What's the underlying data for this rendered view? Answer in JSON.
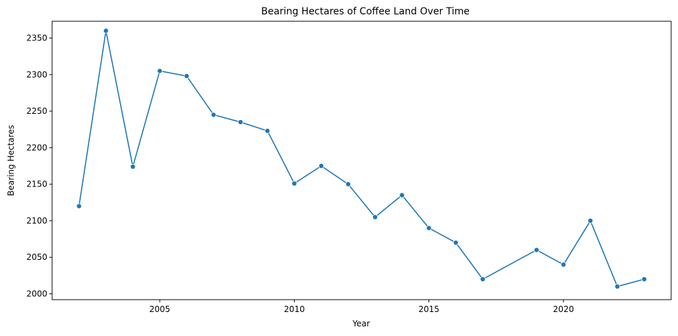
{
  "chart_data": {
    "type": "line",
    "title": "Bearing Hectares of Coffee Land Over Time",
    "xlabel": "Year",
    "ylabel": "Bearing Hectares",
    "xlim": [
      2001.0,
      2024.0
    ],
    "ylim": [
      1992,
      2373
    ],
    "xticks": [
      2005,
      2010,
      2015,
      2020
    ],
    "yticks": [
      2000,
      2050,
      2100,
      2150,
      2200,
      2250,
      2300,
      2350
    ],
    "grid": false,
    "color": "#1f77b4",
    "series": [
      {
        "x": [
          2002,
          2003,
          2004,
          2005,
          2006,
          2007,
          2008,
          2009,
          2010,
          2011,
          2012,
          2013,
          2014,
          2015,
          2016,
          2017,
          2019,
          2020,
          2021,
          2022,
          2023
        ],
        "y": [
          2120,
          2360,
          2174,
          2305,
          2298,
          2245,
          2235,
          2223,
          2151,
          2175,
          2150,
          2105,
          2135,
          2090,
          2070,
          2020,
          2060,
          2040,
          2100,
          2010,
          2020
        ]
      }
    ]
  }
}
